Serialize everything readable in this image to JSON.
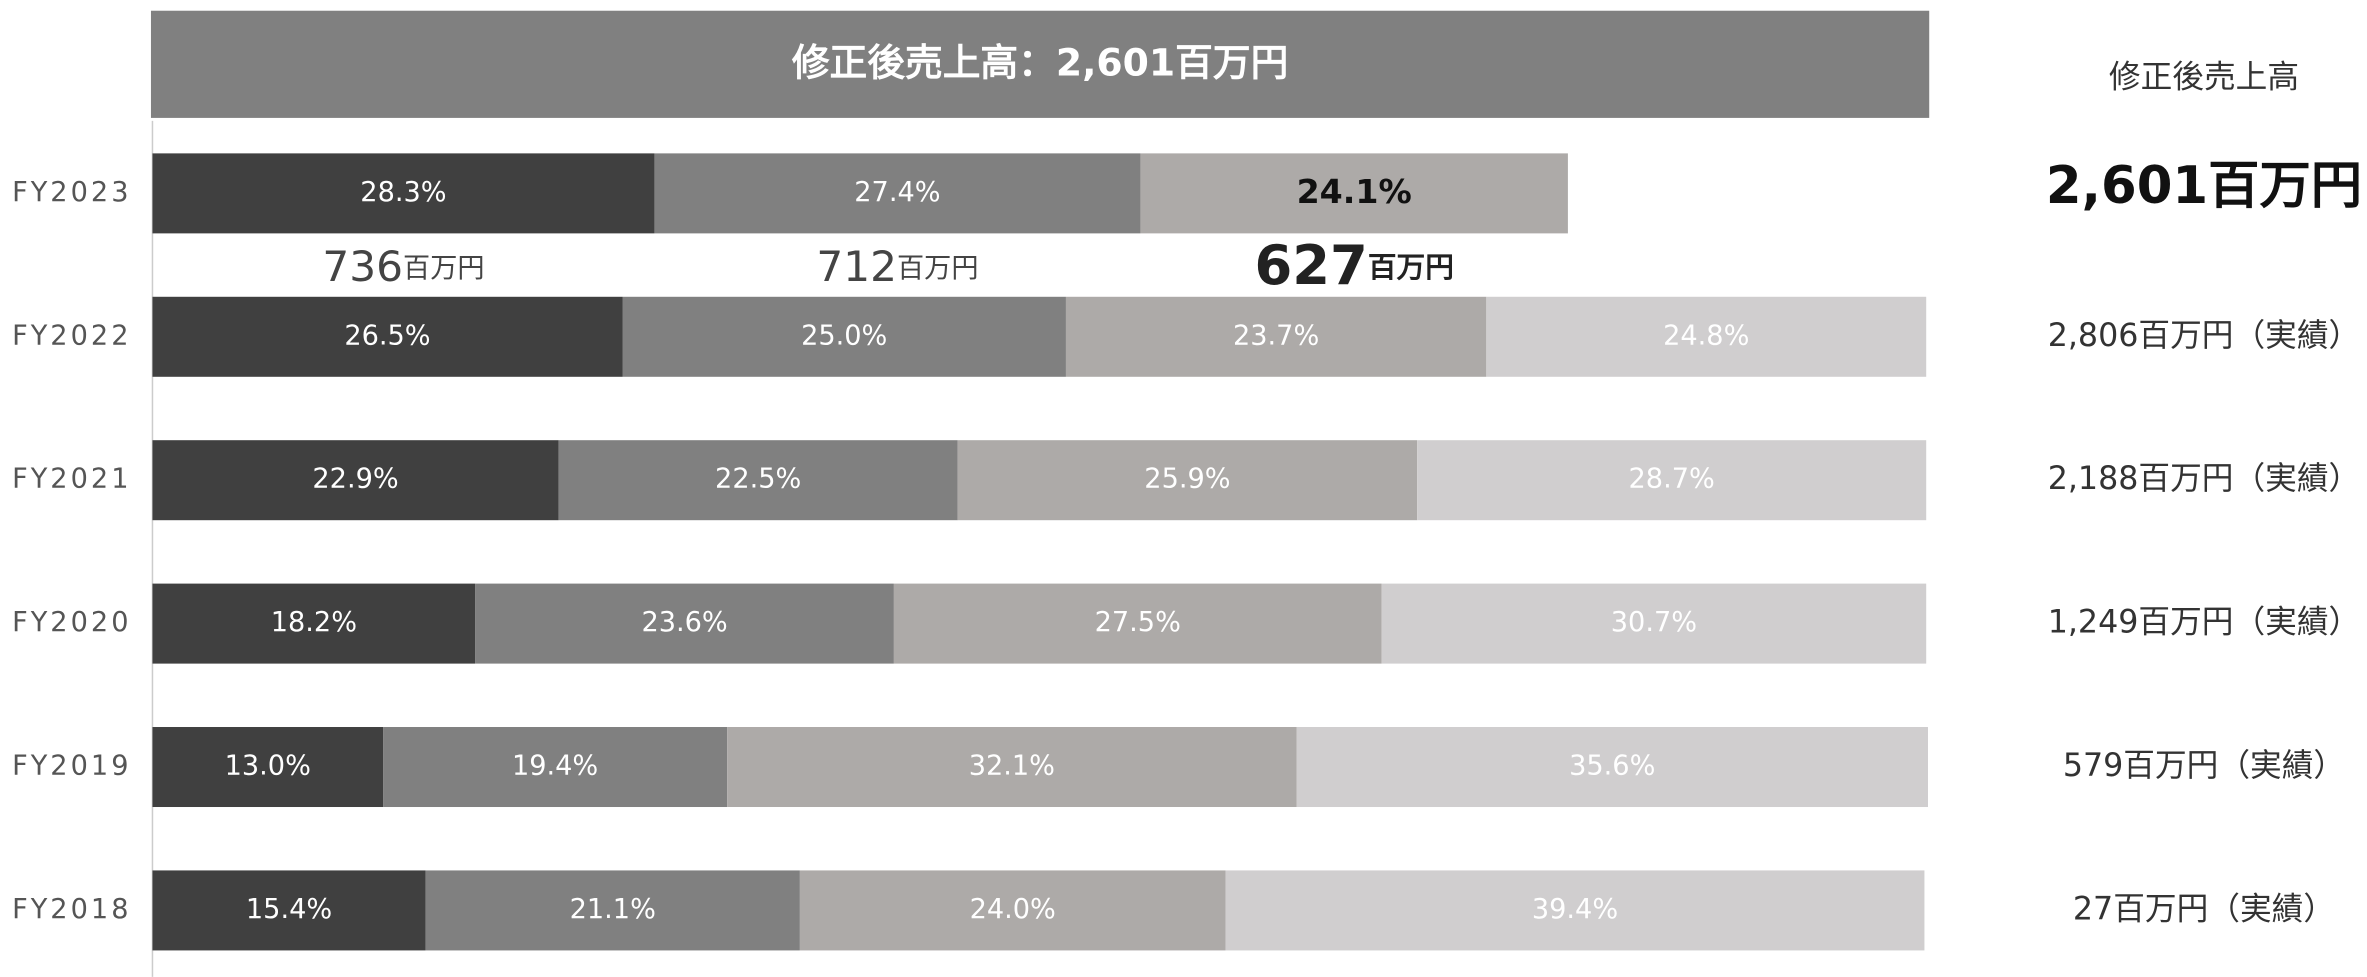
{
  "chart_data": {
    "type": "bar",
    "orientation": "horizontal",
    "stacked": true,
    "title": "修正後売上高：2,601百万円",
    "categories": [
      "FY2023",
      "FY2022",
      "FY2021",
      "FY2020",
      "FY2019",
      "FY2018"
    ],
    "xlim": [
      0,
      100
    ],
    "series": [
      {
        "color": "#404040",
        "values": [
          28.3,
          26.5,
          22.9,
          18.2,
          13.0,
          15.4
        ],
        "value_labels": [
          "28.3%",
          "26.5%",
          "22.9%",
          "18.2%",
          "13.0%",
          "15.4%"
        ]
      },
      {
        "color": "#808080",
        "values": [
          27.4,
          25.0,
          22.5,
          23.6,
          19.4,
          21.1
        ],
        "value_labels": [
          "27.4%",
          "25.0%",
          "22.5%",
          "23.6%",
          "19.4%",
          "21.1%"
        ]
      },
      {
        "color": "#adaaa8",
        "values": [
          24.1,
          23.7,
          25.9,
          27.5,
          32.1,
          24.0
        ],
        "value_labels": [
          "24.1%",
          "23.7%",
          "25.9%",
          "27.5%",
          "32.1%",
          "24.0%"
        ]
      },
      {
        "color": "#d0cecf",
        "values": [
          null,
          24.8,
          28.7,
          30.7,
          35.6,
          39.4
        ],
        "value_labels": [
          null,
          "24.8%",
          "28.7%",
          "30.7%",
          "35.6%",
          "39.4%"
        ]
      }
    ],
    "amount_labels": [
      {
        "value": 736,
        "unit": "百万円"
      },
      {
        "value": 712,
        "unit": "百万円"
      },
      {
        "value": 627,
        "unit": "百万円"
      }
    ],
    "totals_header": "修正後売上高",
    "totals": [
      "2,601百万円",
      "2,806百万円（実績）",
      "2,188百万円（実績）",
      "1,249百万円（実績）",
      "579百万円（実績）",
      "27百万円（実績）"
    ]
  }
}
